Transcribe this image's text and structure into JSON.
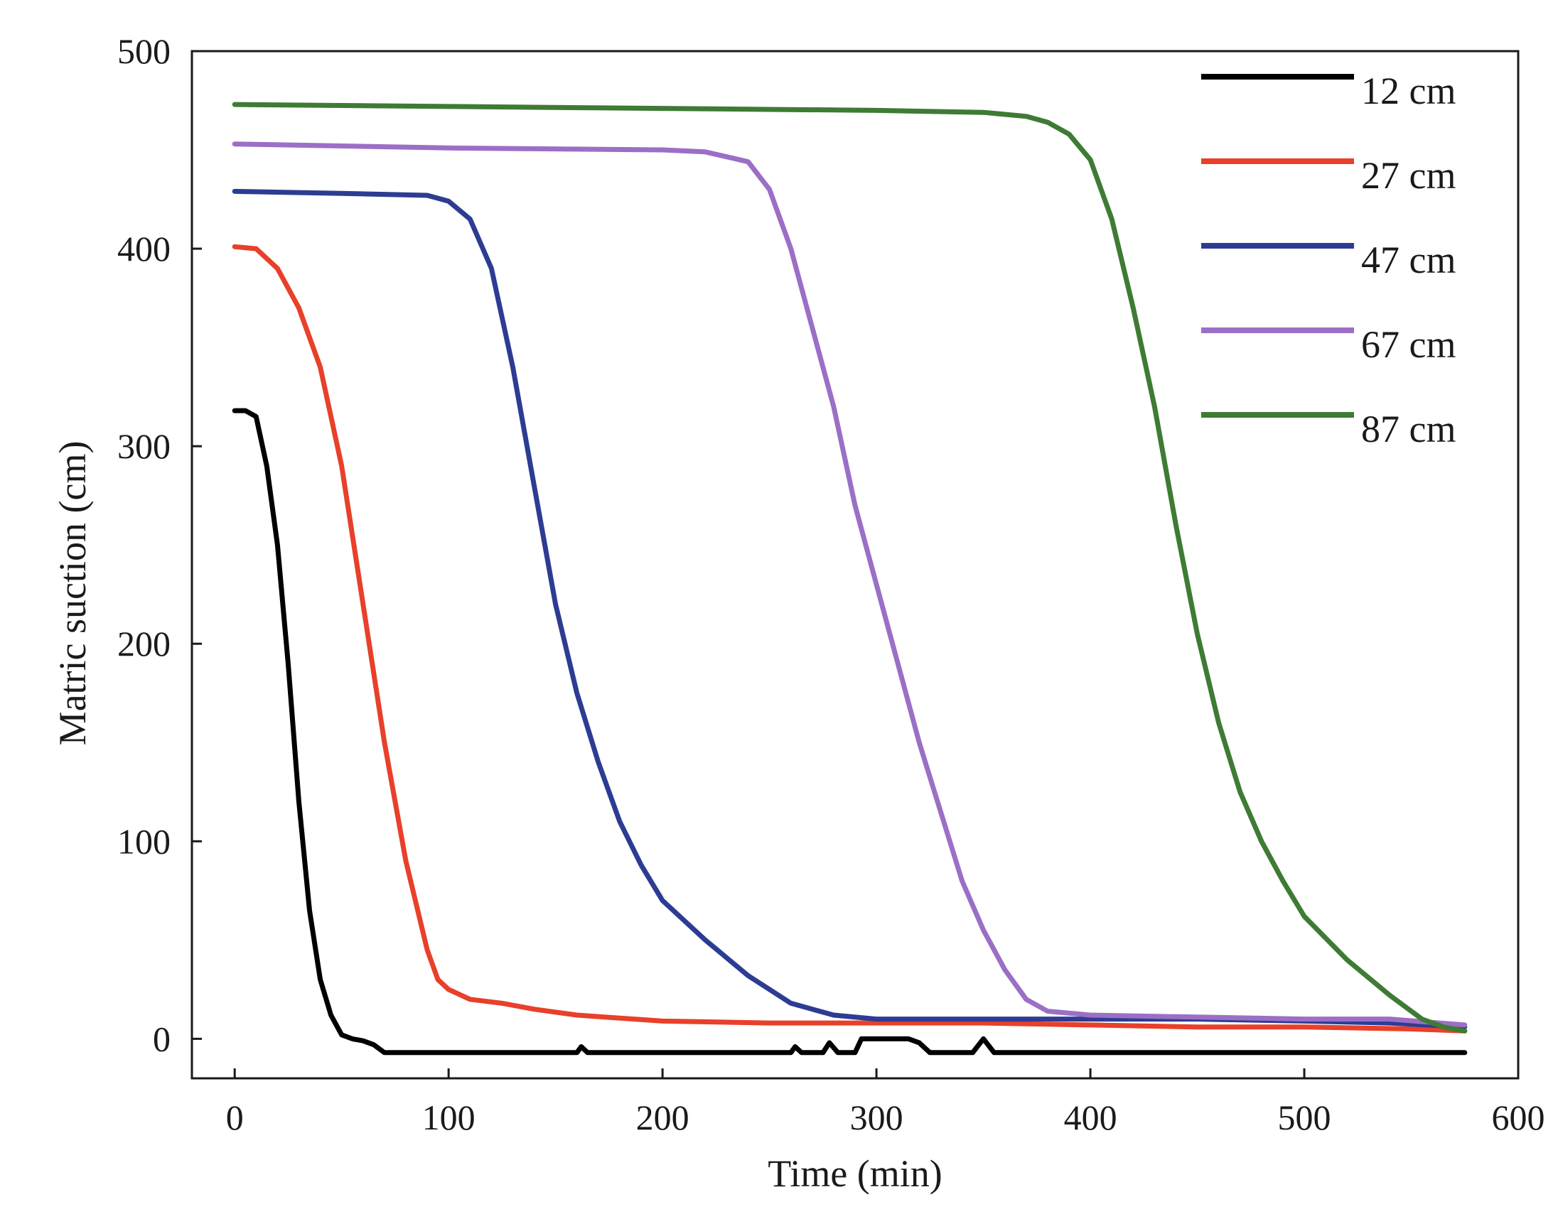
{
  "chart_data": {
    "type": "line",
    "title": "",
    "xlabel": "Time (min)",
    "ylabel": "Matric suction (cm)",
    "xlim": [
      -20,
      600
    ],
    "ylim": [
      -20,
      500
    ],
    "xticks": [
      0,
      100,
      200,
      300,
      400,
      500,
      600
    ],
    "yticks": [
      0,
      100,
      200,
      300,
      400,
      500
    ],
    "xtick_labels": [
      "0",
      "100",
      "200",
      "300",
      "400",
      "500",
      "600"
    ],
    "ytick_labels": [
      "0",
      "100",
      "200",
      "300",
      "400",
      "500"
    ],
    "legend_position": "top-right",
    "grid": false,
    "series": [
      {
        "name": "12 cm",
        "color": "#000000",
        "points": [
          [
            0,
            318
          ],
          [
            5,
            318
          ],
          [
            10,
            315
          ],
          [
            15,
            290
          ],
          [
            20,
            250
          ],
          [
            25,
            190
          ],
          [
            30,
            120
          ],
          [
            35,
            65
          ],
          [
            40,
            30
          ],
          [
            45,
            12
          ],
          [
            50,
            2
          ],
          [
            55,
            0
          ],
          [
            60,
            -1
          ],
          [
            65,
            -3
          ],
          [
            70,
            -7
          ],
          [
            80,
            -7
          ],
          [
            160,
            -7
          ],
          [
            162,
            -4
          ],
          [
            165,
            -7
          ],
          [
            260,
            -7
          ],
          [
            262,
            -4
          ],
          [
            265,
            -7
          ],
          [
            275,
            -7
          ],
          [
            278,
            -2
          ],
          [
            282,
            -7
          ],
          [
            290,
            -7
          ],
          [
            293,
            0
          ],
          [
            300,
            0
          ],
          [
            315,
            0
          ],
          [
            320,
            -2
          ],
          [
            325,
            -7
          ],
          [
            345,
            -7
          ],
          [
            350,
            0
          ],
          [
            355,
            -7
          ],
          [
            575,
            -7
          ]
        ]
      },
      {
        "name": "27 cm",
        "color": "#e8402a",
        "points": [
          [
            0,
            401
          ],
          [
            10,
            400
          ],
          [
            20,
            390
          ],
          [
            30,
            370
          ],
          [
            40,
            340
          ],
          [
            50,
            290
          ],
          [
            60,
            220
          ],
          [
            70,
            150
          ],
          [
            80,
            90
          ],
          [
            90,
            45
          ],
          [
            95,
            30
          ],
          [
            100,
            25
          ],
          [
            110,
            20
          ],
          [
            125,
            18
          ],
          [
            140,
            15
          ],
          [
            160,
            12
          ],
          [
            200,
            9
          ],
          [
            250,
            8
          ],
          [
            300,
            8
          ],
          [
            350,
            8
          ],
          [
            400,
            7
          ],
          [
            450,
            6
          ],
          [
            500,
            6
          ],
          [
            550,
            5
          ],
          [
            575,
            4
          ]
        ]
      },
      {
        "name": "47 cm",
        "color": "#2d3c93",
        "points": [
          [
            0,
            429
          ],
          [
            50,
            428
          ],
          [
            90,
            427
          ],
          [
            100,
            424
          ],
          [
            110,
            415
          ],
          [
            120,
            390
          ],
          [
            130,
            340
          ],
          [
            140,
            280
          ],
          [
            150,
            220
          ],
          [
            160,
            175
          ],
          [
            170,
            140
          ],
          [
            180,
            110
          ],
          [
            190,
            88
          ],
          [
            200,
            70
          ],
          [
            220,
            50
          ],
          [
            240,
            32
          ],
          [
            260,
            18
          ],
          [
            280,
            12
          ],
          [
            300,
            10
          ],
          [
            350,
            10
          ],
          [
            400,
            10
          ],
          [
            450,
            10
          ],
          [
            500,
            9
          ],
          [
            540,
            8
          ],
          [
            575,
            6
          ]
        ]
      },
      {
        "name": "67 cm",
        "color": "#9b6fc6",
        "points": [
          [
            0,
            453
          ],
          [
            100,
            451
          ],
          [
            200,
            450
          ],
          [
            220,
            449
          ],
          [
            240,
            444
          ],
          [
            250,
            430
          ],
          [
            260,
            400
          ],
          [
            270,
            360
          ],
          [
            280,
            320
          ],
          [
            290,
            270
          ],
          [
            300,
            230
          ],
          [
            310,
            190
          ],
          [
            320,
            150
          ],
          [
            330,
            115
          ],
          [
            340,
            80
          ],
          [
            350,
            55
          ],
          [
            360,
            35
          ],
          [
            370,
            20
          ],
          [
            380,
            14
          ],
          [
            400,
            12
          ],
          [
            450,
            11
          ],
          [
            500,
            10
          ],
          [
            540,
            10
          ],
          [
            575,
            7
          ]
        ]
      },
      {
        "name": "87 cm",
        "color": "#3e7b34",
        "points": [
          [
            0,
            473
          ],
          [
            100,
            472
          ],
          [
            200,
            471
          ],
          [
            300,
            470
          ],
          [
            350,
            469
          ],
          [
            370,
            467
          ],
          [
            380,
            464
          ],
          [
            390,
            458
          ],
          [
            400,
            445
          ],
          [
            410,
            415
          ],
          [
            420,
            370
          ],
          [
            430,
            320
          ],
          [
            440,
            260
          ],
          [
            450,
            205
          ],
          [
            460,
            160
          ],
          [
            470,
            125
          ],
          [
            480,
            100
          ],
          [
            490,
            80
          ],
          [
            500,
            62
          ],
          [
            520,
            40
          ],
          [
            540,
            22
          ],
          [
            555,
            10
          ],
          [
            565,
            6
          ],
          [
            575,
            4
          ]
        ]
      }
    ]
  }
}
